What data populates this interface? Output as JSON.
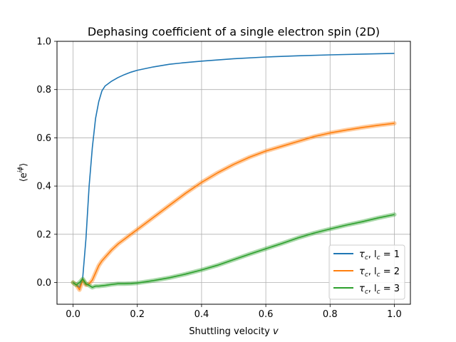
{
  "chart_data": {
    "type": "line",
    "title": "Dephasing coefficient of a single electron spin (2D)",
    "xlabel_main": "Shuttling velocity ",
    "xlabel_var": "v",
    "ylabel_main": "⟨e",
    "ylabel_sup": "iϕ",
    "ylabel_end": "⟩",
    "xlim": [
      -0.05,
      1.05
    ],
    "ylim": [
      -0.09,
      1.0
    ],
    "xticks": [
      0.0,
      0.2,
      0.4,
      0.6,
      0.8,
      1.0
    ],
    "xtick_labels": [
      "0.0",
      "0.2",
      "0.4",
      "0.6",
      "0.8",
      "1.0"
    ],
    "yticks": [
      0.0,
      0.2,
      0.4,
      0.6,
      0.8,
      1.0
    ],
    "ytick_labels": [
      "0.0",
      "0.2",
      "0.4",
      "0.6",
      "0.8",
      "1.0"
    ],
    "grid": true,
    "legend_position": "lower-right",
    "series": [
      {
        "name": "τc, lc = 1",
        "label_parts": [
          "τ",
          "c",
          ", l",
          "c",
          " = 1"
        ],
        "color": "#1f77b4",
        "band": false,
        "x": [
          0.0,
          0.01,
          0.02,
          0.03,
          0.04,
          0.05,
          0.06,
          0.07,
          0.08,
          0.09,
          0.1,
          0.12,
          0.14,
          0.16,
          0.18,
          0.2,
          0.25,
          0.3,
          0.35,
          0.4,
          0.5,
          0.6,
          0.7,
          0.8,
          0.9,
          1.0
        ],
        "y": [
          0.0,
          -0.01,
          -0.02,
          0.02,
          0.18,
          0.4,
          0.56,
          0.68,
          0.75,
          0.795,
          0.815,
          0.835,
          0.85,
          0.862,
          0.872,
          0.88,
          0.894,
          0.905,
          0.912,
          0.918,
          0.928,
          0.935,
          0.94,
          0.944,
          0.947,
          0.95
        ]
      },
      {
        "name": "τc, lc = 2",
        "label_parts": [
          "τ",
          "c",
          ", l",
          "c",
          " = 2"
        ],
        "color": "#ff7f0e",
        "band": true,
        "x": [
          0.0,
          0.01,
          0.02,
          0.03,
          0.04,
          0.05,
          0.06,
          0.07,
          0.08,
          0.09,
          0.1,
          0.12,
          0.14,
          0.16,
          0.18,
          0.2,
          0.25,
          0.3,
          0.35,
          0.4,
          0.45,
          0.5,
          0.55,
          0.6,
          0.65,
          0.7,
          0.75,
          0.8,
          0.85,
          0.9,
          0.95,
          1.0
        ],
        "y": [
          0.0,
          -0.01,
          -0.03,
          0.01,
          -0.01,
          -0.005,
          0.01,
          0.04,
          0.07,
          0.09,
          0.105,
          0.135,
          0.16,
          0.18,
          0.2,
          0.22,
          0.27,
          0.32,
          0.37,
          0.415,
          0.455,
          0.49,
          0.52,
          0.545,
          0.565,
          0.585,
          0.605,
          0.62,
          0.632,
          0.643,
          0.652,
          0.66
        ]
      },
      {
        "name": "τc, lc = 3",
        "label_parts": [
          "τ",
          "c",
          ", l",
          "c",
          " = 3"
        ],
        "color": "#2ca02c",
        "band": true,
        "x": [
          0.0,
          0.01,
          0.02,
          0.03,
          0.04,
          0.05,
          0.06,
          0.07,
          0.08,
          0.1,
          0.12,
          0.14,
          0.16,
          0.18,
          0.2,
          0.25,
          0.3,
          0.35,
          0.4,
          0.45,
          0.5,
          0.55,
          0.6,
          0.65,
          0.7,
          0.75,
          0.8,
          0.85,
          0.9,
          0.95,
          1.0
        ],
        "y": [
          0.0,
          -0.01,
          0.0,
          0.015,
          -0.005,
          -0.012,
          -0.02,
          -0.015,
          -0.015,
          -0.012,
          -0.008,
          -0.005,
          -0.005,
          -0.004,
          -0.002,
          0.008,
          0.02,
          0.035,
          0.052,
          0.072,
          0.095,
          0.118,
          0.14,
          0.162,
          0.185,
          0.205,
          0.222,
          0.238,
          0.252,
          0.268,
          0.282
        ]
      }
    ]
  }
}
